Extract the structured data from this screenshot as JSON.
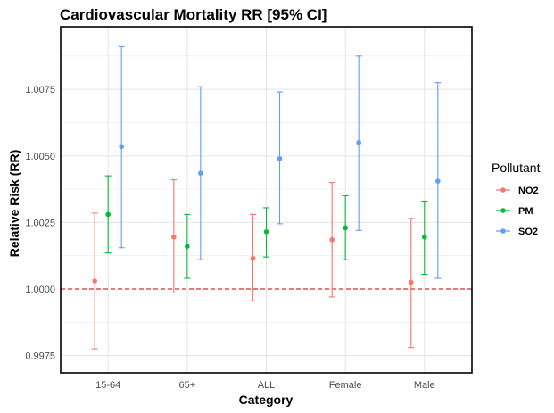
{
  "chart_data": {
    "type": "errorbar",
    "title": "Cardiovascular Mortality RR [95% CI]",
    "xlabel": "Category",
    "ylabel": "Relative Risk (RR)",
    "categories": [
      "15-64",
      "65+",
      "ALL",
      "Female",
      "Male"
    ],
    "ylim": [
      0.99685,
      1.00985
    ],
    "yticks": [
      0.9975,
      1.0,
      1.0025,
      1.005,
      1.0075
    ],
    "ytick_labels": [
      "0.9975",
      "1.0000",
      "1.0025",
      "1.0050",
      "1.0075"
    ],
    "reference_line": {
      "y": 1.0,
      "style": "dashed",
      "color": "#CC3333"
    },
    "grid": true,
    "legend": {
      "title": "Pollutant",
      "position": "right"
    },
    "series": [
      {
        "name": "NO2",
        "color": "#F8766D",
        "values": [
          1.0003,
          1.00195,
          1.00115,
          1.00185,
          1.00025
        ],
        "lower": [
          0.99775,
          0.99985,
          0.99955,
          0.9997,
          0.9978
        ],
        "upper": [
          1.00285,
          1.0041,
          1.0028,
          1.004,
          1.00265
        ]
      },
      {
        "name": "PM",
        "color": "#00BA38",
        "values": [
          1.0028,
          1.0016,
          1.00215,
          1.0023,
          1.00195
        ],
        "lower": [
          1.00135,
          1.0004,
          1.0012,
          1.0011,
          1.00055
        ],
        "upper": [
          1.00425,
          1.0028,
          1.00305,
          1.0035,
          1.0033
        ]
      },
      {
        "name": "SO2",
        "color": "#619CFF",
        "values": [
          1.00535,
          1.00435,
          1.0049,
          1.0055,
          1.00405
        ],
        "lower": [
          1.00155,
          1.0011,
          1.00245,
          1.0022,
          1.0004
        ],
        "upper": [
          1.0091,
          1.0076,
          1.0074,
          1.00875,
          1.00775
        ]
      }
    ]
  }
}
